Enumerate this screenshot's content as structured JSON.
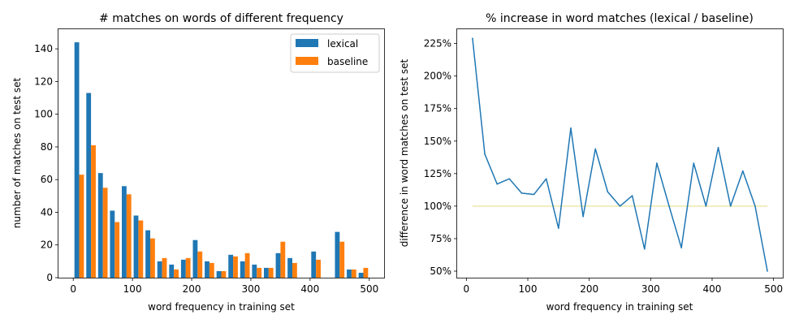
{
  "chart_data": [
    {
      "type": "bar",
      "title": "# matches on words of different frequency",
      "xlabel": "word frequency in training set",
      "ylabel": "number of matches on test set",
      "xlim": [
        -25,
        525
      ],
      "ylim": [
        0,
        152
      ],
      "xticks": [
        0,
        100,
        200,
        300,
        400,
        500
      ],
      "yticks": [
        0,
        20,
        40,
        60,
        80,
        100,
        120,
        140
      ],
      "bin_width": 20,
      "x": [
        10,
        30,
        50,
        70,
        90,
        110,
        130,
        150,
        170,
        190,
        210,
        230,
        250,
        270,
        290,
        310,
        330,
        350,
        370,
        390,
        410,
        430,
        450,
        470,
        490
      ],
      "legend_position": "top-right",
      "series": [
        {
          "name": "lexical",
          "color": "#1f77b4",
          "values": [
            144,
            113,
            64,
            41,
            56,
            38,
            29,
            10,
            8,
            11,
            23,
            10,
            4,
            14,
            10,
            8,
            6,
            15,
            12,
            0,
            16,
            0,
            28,
            5,
            3
          ]
        },
        {
          "name": "baseline",
          "color": "#ff7f0e",
          "values": [
            63,
            81,
            55,
            34,
            51,
            35,
            24,
            12,
            5,
            12,
            16,
            9,
            4,
            13,
            15,
            6,
            6,
            22,
            9,
            0,
            11,
            0,
            22,
            5,
            6
          ]
        }
      ]
    },
    {
      "type": "line",
      "title": "% increase in word matches (lexical / baseline)",
      "xlabel": "word frequency in training set",
      "ylabel": "difference in word matches on test set",
      "xlim": [
        -15,
        515
      ],
      "ylim": [
        0.45,
        2.36
      ],
      "xticks": [
        0,
        100,
        200,
        300,
        400,
        500
      ],
      "yticks": [
        0.5,
        0.75,
        1.0,
        1.25,
        1.5,
        1.75,
        2.0,
        2.25
      ],
      "ytick_labels": [
        "50%",
        "75%",
        "100%",
        "125%",
        "150%",
        "175%",
        "200%",
        "225%"
      ],
      "x": [
        10,
        30,
        50,
        70,
        90,
        110,
        130,
        150,
        170,
        190,
        210,
        230,
        250,
        270,
        290,
        310,
        330,
        350,
        370,
        390,
        410,
        430,
        450,
        470,
        490
      ],
      "series": [
        {
          "color": "#1f77b4",
          "values": [
            2.29,
            1.4,
            1.17,
            1.21,
            1.1,
            1.09,
            1.21,
            0.83,
            1.6,
            0.92,
            1.44,
            1.11,
            1.0,
            1.08,
            0.67,
            1.33,
            1.0,
            0.68,
            1.33,
            1.0,
            1.45,
            1.0,
            1.27,
            1.0,
            0.5
          ]
        }
      ],
      "reference_line": {
        "value": 1.0,
        "color": "#eee8aa",
        "x_range": [
          10,
          490
        ]
      }
    }
  ]
}
